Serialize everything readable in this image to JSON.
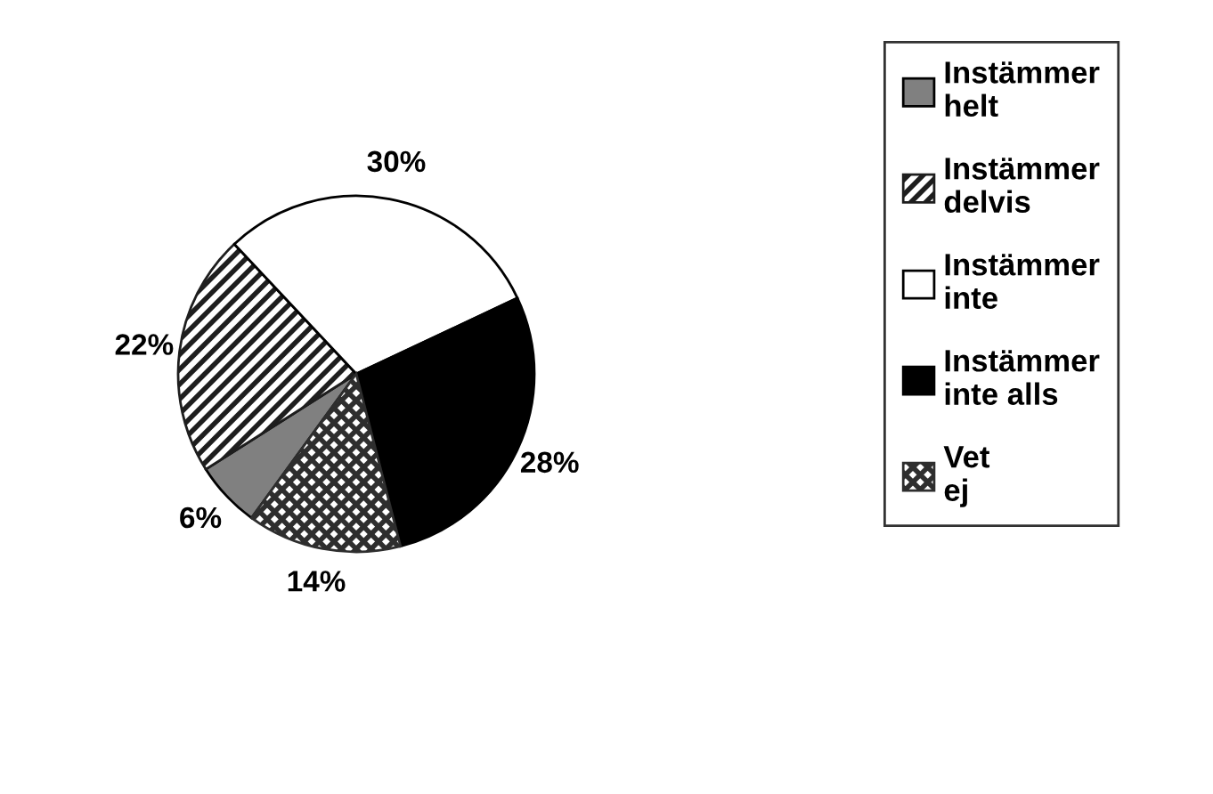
{
  "chart_data": {
    "type": "pie",
    "categories": [
      "Instämmer helt",
      "Instämmer delvis",
      "Instämmer inte",
      "Instämmer inte alls",
      "Vet ej"
    ],
    "values": [
      6,
      22,
      30,
      28,
      14
    ],
    "value_labels": [
      "6%",
      "22%",
      "30%",
      "28%",
      "14%"
    ],
    "colors": [
      "#808080",
      "#1e1e1e",
      "#ffffff",
      "#000000",
      "#2e2e2e"
    ],
    "legend": "right"
  }
}
